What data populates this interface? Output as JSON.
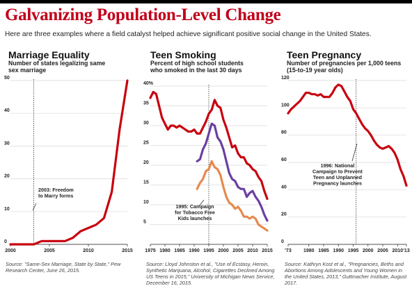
{
  "header": {
    "title": "Galvanizing Population-Level Change",
    "subtitle": "Here are three examples where a field catalyst helped achieve significant positive social change in the United States."
  },
  "colors": {
    "red": "#c8000e",
    "purple": "#6b3fa0",
    "orange": "#e58a4f",
    "grid": "#d8d8d8",
    "title": "#c0001a"
  },
  "panels": {
    "marriage": {
      "title": "Marriage Equality",
      "subtitle": "Number of states legalizing same sex marriage",
      "source": "Source: \"Same-Sex Marriage, State by State,\" Pew Research Center, June 26, 2015.",
      "annotation": [
        "2003: Freedom",
        "to Marry forms"
      ]
    },
    "smoking": {
      "title": "Teen Smoking",
      "subtitle": "Percent of high school students who smoked in the last 30 days",
      "source": "Source: Lloyd Johnston et al., \"Use of Ecstasy, Heroin, Synthetic Marijuana, Alcohol, Cigarettes Declined Among US Teens in 2015,\" University of Michigan News Service, December 16, 2015.",
      "annotation": [
        "1995: Campaign",
        "for Tobacco Free",
        "Kids launches"
      ]
    },
    "pregnancy": {
      "title": "Teen Pregnancy",
      "subtitle": "Number of pregnancies per 1,000 teens (15-to-19 year olds)",
      "source": "Source: Kathryn Kost et al., \"Pregnancies, Births and Abortions Among Adolescents and Young Women in the United States, 2013,\" Guttmacher Institute, August 2017.",
      "annotation": [
        "1996: National",
        "Campaign to Prevent",
        "Teen and Unplanned",
        "Pregnancy launches"
      ]
    }
  },
  "chart_data": [
    {
      "type": "line",
      "title": "Marriage Equality",
      "ylabel": "Number of states legalizing same sex marriage",
      "xlim": [
        2000,
        2015
      ],
      "ylim": [
        0,
        50
      ],
      "x_ticks": [
        "2000",
        "2005",
        "2010",
        "2015"
      ],
      "y_ticks": [
        "0",
        "10",
        "20",
        "30",
        "40",
        "50"
      ],
      "event_x": 2003,
      "series": [
        {
          "color": "red",
          "x": [
            2000,
            2001,
            2002,
            2003,
            2004,
            2005,
            2006,
            2007,
            2008,
            2009,
            2010,
            2011,
            2012,
            2013,
            2014,
            2015
          ],
          "values": [
            0,
            0,
            0,
            0,
            1,
            1,
            1,
            1,
            2,
            4,
            5,
            6,
            8,
            16,
            35,
            50
          ]
        }
      ]
    },
    {
      "type": "line",
      "title": "Teen Smoking",
      "ylabel": "Percent of high school students who smoked in the last 30 days",
      "xlim": [
        1975,
        2015
      ],
      "ylim": [
        0,
        40
      ],
      "x_ticks": [
        "1975",
        "1980",
        "1985",
        "1990",
        "1995",
        "2000",
        "2005",
        "2010",
        "2015"
      ],
      "y_ticks": [
        "5",
        "10",
        "15",
        "20",
        "25",
        "30",
        "35",
        "40%"
      ],
      "event_x": 1995,
      "series": [
        {
          "color": "red",
          "x": [
            1975,
            1976,
            1977,
            1978,
            1979,
            1980,
            1981,
            1982,
            1983,
            1984,
            1985,
            1986,
            1987,
            1988,
            1989,
            1990,
            1991,
            1992,
            1993,
            1994,
            1995,
            1996,
            1997,
            1998,
            1999,
            2000,
            2001,
            2002,
            2003,
            2004,
            2005,
            2006,
            2007,
            2008,
            2009,
            2010,
            2011,
            2012,
            2013,
            2014,
            2015
          ],
          "values": [
            37,
            38.5,
            38,
            35,
            32,
            30.5,
            29,
            30,
            30,
            29.5,
            30,
            29.5,
            29,
            28.5,
            28.5,
            29,
            28,
            28,
            29.5,
            31,
            33,
            34,
            36.5,
            35,
            34.5,
            31.5,
            29.5,
            27,
            24.5,
            25,
            23,
            22,
            22,
            20.5,
            20,
            19,
            18.5,
            17,
            16,
            13.5,
            11.5
          ]
        },
        {
          "color": "purple",
          "x": [
            1991,
            1992,
            1993,
            1994,
            1995,
            1996,
            1997,
            1998,
            1999,
            2000,
            2001,
            2002,
            2003,
            2004,
            2005,
            2006,
            2007,
            2008,
            2009,
            2010,
            2011,
            2012,
            2013,
            2014,
            2015
          ],
          "values": [
            21,
            21.5,
            24,
            25.5,
            28,
            30.5,
            30,
            27,
            26,
            24,
            21,
            18,
            16.5,
            16,
            14.5,
            14,
            14,
            12,
            13,
            13.5,
            12,
            11,
            9.5,
            7.5,
            6
          ]
        },
        {
          "color": "orange",
          "x": [
            1991,
            1992,
            1993,
            1994,
            1995,
            1996,
            1997,
            1998,
            1999,
            2000,
            2001,
            2002,
            2003,
            2004,
            2005,
            2006,
            2007,
            2008,
            2009,
            2010,
            2011,
            2012,
            2013,
            2014,
            2015
          ],
          "values": [
            14,
            15.5,
            16.5,
            18.5,
            19,
            21,
            19.5,
            19,
            17.5,
            14.5,
            12,
            10.5,
            10,
            9,
            9.5,
            8.5,
            7,
            7,
            6.5,
            7,
            6.5,
            5,
            4.5,
            4,
            3.5
          ]
        }
      ]
    },
    {
      "type": "line",
      "title": "Teen Pregnancy",
      "ylabel": "Number of pregnancies per 1,000 teens (15-to-19 year olds)",
      "xlim": [
        1973,
        2013
      ],
      "ylim": [
        0,
        120
      ],
      "x_ticks": [
        "'73",
        "1980",
        "1985",
        "1990",
        "1995",
        "2000",
        "2005",
        "2010",
        "'13"
      ],
      "x_tick_values": [
        1973,
        1980,
        1985,
        1990,
        1995,
        2000,
        2005,
        2010,
        2013
      ],
      "y_ticks": [
        "0",
        "20",
        "40",
        "60",
        "80",
        "100",
        "120"
      ],
      "event_x": 1996,
      "series": [
        {
          "color": "red",
          "x": [
            1973,
            1974,
            1975,
            1976,
            1977,
            1978,
            1979,
            1980,
            1981,
            1982,
            1983,
            1984,
            1985,
            1986,
            1987,
            1988,
            1989,
            1990,
            1991,
            1992,
            1993,
            1994,
            1995,
            1996,
            1997,
            1998,
            1999,
            2000,
            2001,
            2002,
            2003,
            2004,
            2005,
            2006,
            2007,
            2008,
            2009,
            2010,
            2011,
            2012,
            2013
          ],
          "values": [
            96,
            99,
            101,
            103,
            105,
            108,
            111,
            111,
            110,
            110,
            109,
            110,
            108,
            108,
            108,
            111,
            115,
            117,
            116,
            112,
            108,
            105,
            99,
            96,
            92,
            88,
            85,
            83,
            80,
            76,
            73,
            71,
            70,
            71,
            72,
            70,
            67,
            62,
            55,
            50,
            43
          ]
        }
      ]
    }
  ]
}
